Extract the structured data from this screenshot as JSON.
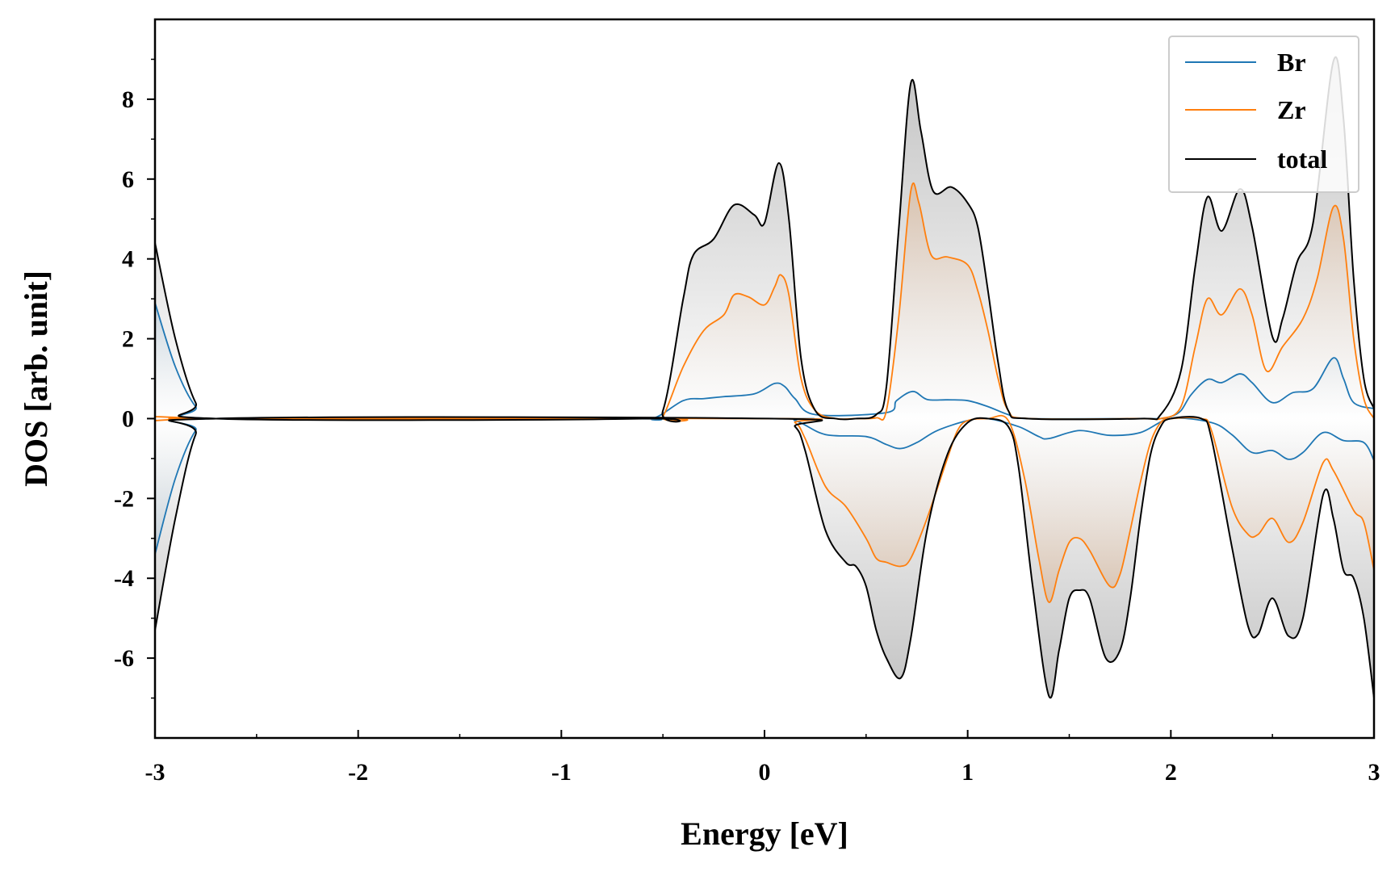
{
  "chart_data": {
    "type": "line",
    "xlabel": "Energy [eV]",
    "ylabel": "DOS [arb. unit]",
    "xlim": [
      -3,
      3
    ],
    "ylim": [
      -8,
      10
    ],
    "xticks": [
      -3,
      -2,
      -1,
      0,
      1,
      2,
      3
    ],
    "xtick_labels": [
      "-3",
      "-2",
      "-1",
      "0",
      "1",
      "2",
      "3"
    ],
    "yticks": [
      -6,
      -4,
      -2,
      0,
      2,
      4,
      6,
      8
    ],
    "ytick_labels": [
      "-6",
      "-4",
      "-2",
      "0",
      "2",
      "4",
      "6",
      "8"
    ],
    "grid": false,
    "legend": {
      "placement": "top-right",
      "entries": [
        "Br",
        "Zr",
        "total"
      ]
    },
    "colors": {
      "Br": "#1f77b4",
      "Zr": "#ff7f0e",
      "total": "#000000"
    },
    "fill": "gradient fill between zero and the spin-up / spin-down curves (gray for total, orange for Zr, blue for Br)",
    "series": [
      {
        "name": "Br",
        "up": {
          "x": [
            -3.0,
            -2.9,
            -2.8,
            -2.7,
            -0.7,
            -0.55,
            -0.4,
            -0.3,
            -0.2,
            -0.05,
            0.05,
            0.1,
            0.15,
            0.25,
            0.6,
            0.65,
            0.73,
            0.8,
            0.9,
            1.0,
            1.1,
            1.2,
            1.3,
            1.85,
            1.95,
            2.0,
            2.05,
            2.1,
            2.18,
            2.25,
            2.34,
            2.4,
            2.5,
            2.6,
            2.7,
            2.8,
            2.85,
            2.9,
            3.0
          ],
          "y": [
            2.9,
            1.3,
            0.3,
            0.0,
            0.0,
            0.0,
            0.45,
            0.5,
            0.55,
            0.62,
            0.88,
            0.8,
            0.5,
            0.1,
            0.15,
            0.45,
            0.68,
            0.48,
            0.47,
            0.45,
            0.3,
            0.1,
            0.0,
            0.0,
            0.0,
            0.05,
            0.2,
            0.6,
            0.98,
            0.9,
            1.12,
            0.9,
            0.4,
            0.65,
            0.75,
            1.52,
            1.0,
            0.4,
            0.25
          ]
        },
        "down": {
          "x": [
            -3.0,
            -2.9,
            -2.8,
            -2.7,
            0.0,
            0.15,
            0.3,
            0.5,
            0.6,
            0.67,
            0.75,
            0.85,
            1.0,
            1.1,
            1.25,
            1.35,
            1.4,
            1.55,
            1.7,
            1.85,
            2.0,
            2.2,
            2.3,
            2.4,
            2.5,
            2.58,
            2.65,
            2.75,
            2.85,
            2.95,
            3.0
          ],
          "y": [
            -3.4,
            -1.5,
            -0.3,
            0.0,
            0.0,
            -0.05,
            -0.4,
            -0.45,
            -0.65,
            -0.75,
            -0.6,
            -0.3,
            -0.05,
            0.0,
            -0.2,
            -0.45,
            -0.5,
            -0.3,
            -0.42,
            -0.35,
            0.0,
            -0.1,
            -0.4,
            -0.85,
            -0.8,
            -1.02,
            -0.85,
            -0.35,
            -0.55,
            -0.6,
            -1.05
          ]
        }
      },
      {
        "name": "Zr",
        "up": {
          "x": [
            -3.0,
            -2.9,
            -2.8,
            -2.7,
            -0.55,
            -0.5,
            -0.4,
            -0.3,
            -0.2,
            -0.15,
            -0.08,
            0.0,
            0.05,
            0.08,
            0.12,
            0.18,
            0.25,
            0.35,
            0.45,
            0.55,
            0.6,
            0.66,
            0.72,
            0.76,
            0.82,
            0.9,
            1.0,
            1.05,
            1.1,
            1.15,
            1.2,
            1.3,
            1.85,
            1.95,
            2.05,
            2.12,
            2.18,
            2.25,
            2.34,
            2.4,
            2.47,
            2.55,
            2.65,
            2.72,
            2.8,
            2.85,
            2.9,
            2.95,
            3.0
          ],
          "y": [
            0.05,
            0.03,
            0.0,
            0.0,
            0.0,
            0.05,
            1.3,
            2.2,
            2.6,
            3.1,
            3.05,
            2.85,
            3.3,
            3.6,
            3.1,
            1.0,
            0.2,
            0.0,
            0.0,
            0.02,
            0.2,
            2.5,
            5.7,
            5.4,
            4.1,
            4.05,
            3.85,
            3.2,
            2.2,
            1.0,
            0.2,
            0.0,
            0.0,
            0.0,
            0.3,
            1.8,
            3.0,
            2.6,
            3.25,
            2.6,
            1.2,
            1.8,
            2.5,
            3.5,
            5.3,
            4.5,
            2.0,
            0.5,
            0.0
          ]
        },
        "down": {
          "x": [
            -3.0,
            -2.9,
            -2.8,
            -2.7,
            0.05,
            0.15,
            0.2,
            0.3,
            0.4,
            0.5,
            0.55,
            0.6,
            0.67,
            0.72,
            0.8,
            0.9,
            0.95,
            1.0,
            1.1,
            1.2,
            1.28,
            1.35,
            1.4,
            1.45,
            1.5,
            1.55,
            1.6,
            1.7,
            1.75,
            1.8,
            1.85,
            1.9,
            1.95,
            2.0,
            2.15,
            2.2,
            2.3,
            2.38,
            2.43,
            2.5,
            2.58,
            2.65,
            2.75,
            2.8,
            2.9,
            2.95,
            3.0
          ],
          "y": [
            -0.05,
            -0.02,
            0.0,
            0.0,
            0.0,
            -0.1,
            -0.5,
            -1.7,
            -2.2,
            -3.0,
            -3.5,
            -3.6,
            -3.7,
            -3.5,
            -2.5,
            -1.0,
            -0.3,
            -0.05,
            0.0,
            -0.05,
            -1.5,
            -3.5,
            -4.6,
            -3.8,
            -3.1,
            -3.0,
            -3.3,
            -4.2,
            -3.9,
            -2.8,
            -1.6,
            -0.6,
            -0.1,
            0.0,
            0.0,
            -0.3,
            -2.2,
            -2.9,
            -2.9,
            -2.5,
            -3.1,
            -2.6,
            -1.1,
            -1.3,
            -2.3,
            -2.6,
            -3.8
          ]
        }
      },
      {
        "name": "total",
        "up": {
          "x": [
            -3.0,
            -2.9,
            -2.8,
            -2.7,
            -0.6,
            -0.5,
            -0.4,
            -0.35,
            -0.25,
            -0.15,
            -0.05,
            0.0,
            0.07,
            0.12,
            0.18,
            0.25,
            0.35,
            0.45,
            0.55,
            0.6,
            0.66,
            0.72,
            0.77,
            0.83,
            0.92,
            1.0,
            1.05,
            1.1,
            1.15,
            1.2,
            1.3,
            1.85,
            1.95,
            2.05,
            2.12,
            2.18,
            2.25,
            2.34,
            2.4,
            2.5,
            2.55,
            2.62,
            2.7,
            2.8,
            2.85,
            2.9,
            2.95,
            3.0
          ],
          "y": [
            4.4,
            2.0,
            0.4,
            0.0,
            0.0,
            0.2,
            3.0,
            4.1,
            4.5,
            5.35,
            5.1,
            4.9,
            6.4,
            5.0,
            1.5,
            0.2,
            0.0,
            0.0,
            0.1,
            0.8,
            4.7,
            8.4,
            7.2,
            5.7,
            5.8,
            5.4,
            4.8,
            3.2,
            1.4,
            0.2,
            0.0,
            0.0,
            0.1,
            1.2,
            3.8,
            5.55,
            4.7,
            5.75,
            4.8,
            2.05,
            2.5,
            3.9,
            4.9,
            8.95,
            7.5,
            3.5,
            1.0,
            0.25
          ]
        },
        "down": {
          "x": [
            -3.0,
            -2.9,
            -2.8,
            -2.7,
            0.05,
            0.15,
            0.2,
            0.3,
            0.4,
            0.45,
            0.5,
            0.55,
            0.6,
            0.67,
            0.72,
            0.8,
            0.9,
            1.0,
            1.1,
            1.2,
            1.25,
            1.32,
            1.4,
            1.45,
            1.5,
            1.55,
            1.6,
            1.68,
            1.75,
            1.8,
            1.85,
            1.9,
            1.95,
            2.0,
            2.15,
            2.2,
            2.3,
            2.38,
            2.43,
            2.5,
            2.58,
            2.65,
            2.75,
            2.8,
            2.85,
            2.9,
            2.95,
            3.0
          ],
          "y": [
            -5.3,
            -2.5,
            -0.4,
            0.0,
            0.0,
            -0.2,
            -0.8,
            -2.8,
            -3.6,
            -3.7,
            -4.2,
            -5.3,
            -6.0,
            -6.5,
            -5.5,
            -2.8,
            -0.9,
            -0.1,
            0.0,
            -0.2,
            -1.2,
            -4.2,
            -6.95,
            -5.8,
            -4.5,
            -4.3,
            -4.5,
            -6.0,
            -5.8,
            -4.5,
            -2.5,
            -0.9,
            -0.2,
            0.0,
            0.0,
            -0.5,
            -3.2,
            -5.2,
            -5.4,
            -4.5,
            -5.45,
            -5.0,
            -1.9,
            -2.5,
            -3.8,
            -4.0,
            -5.0,
            -7.0
          ]
        }
      }
    ]
  }
}
